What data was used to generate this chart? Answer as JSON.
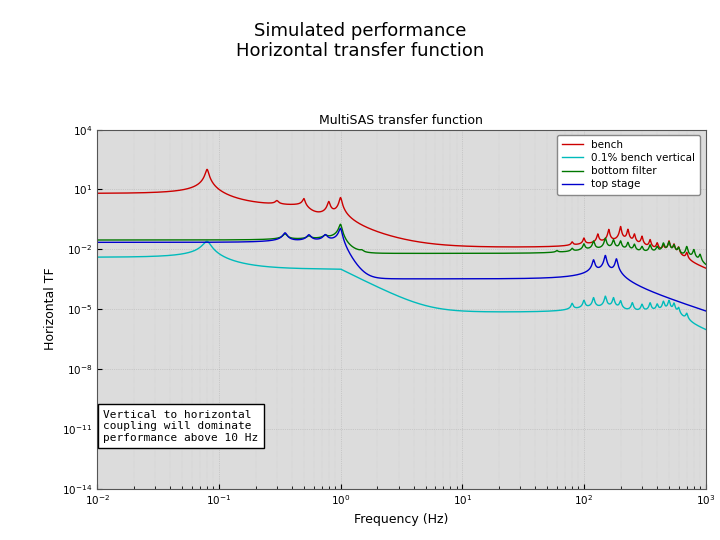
{
  "title_main": "Simulated performance\nHorizontal transfer function",
  "plot_title": "MultiSAS transfer function",
  "xlabel": "Frequency (Hz)",
  "ylabel": "Horizontal TF",
  "legend_labels": [
    "top stage",
    "bottom filter",
    "bench",
    "0.1% bench vertical"
  ],
  "legend_colors": [
    "#0000cc",
    "#007700",
    "#cc0000",
    "#00bbbb"
  ],
  "annotation_text": "Vertical to horizontal\ncoupling will dominate\nperformance above 10 Hz",
  "fig_bg": "#ffffff",
  "plot_bg": "#dcdcdc"
}
